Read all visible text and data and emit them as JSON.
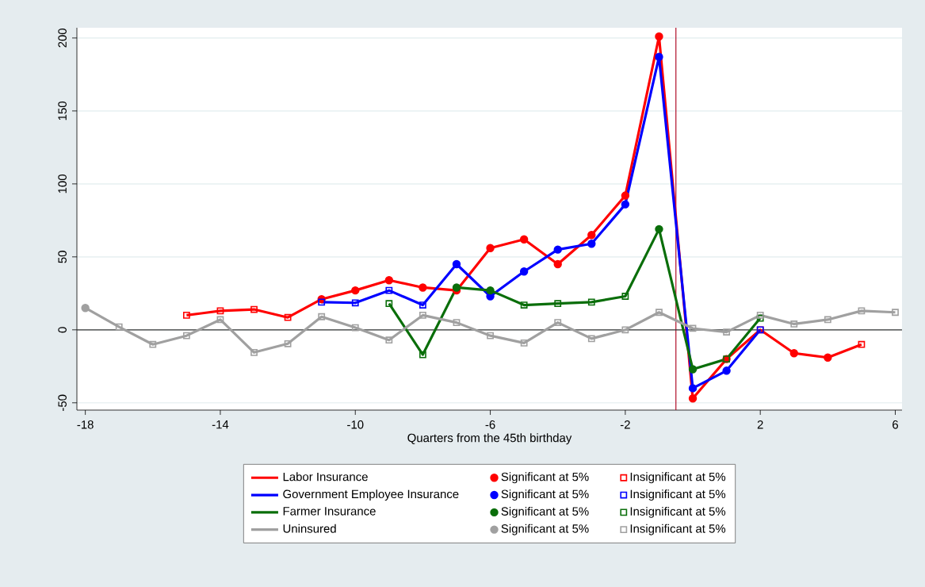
{
  "chart_data": {
    "type": "line",
    "xlabel": "Quarters from the 45th birthday",
    "x": [
      -18,
      -17,
      -16,
      -15,
      -14,
      -13,
      -12,
      -11,
      -10,
      -9,
      -8,
      -7,
      -6,
      -5,
      -4,
      -3,
      -2,
      -1,
      0,
      1,
      2,
      3,
      4,
      5,
      6
    ],
    "series": [
      {
        "name": "Labor Insurance",
        "color": "#ff0000",
        "values": [
          null,
          null,
          null,
          10,
          13,
          14,
          8.5,
          21,
          27,
          34,
          29,
          27,
          56,
          62,
          45,
          65,
          92,
          201,
          -47,
          -20,
          0,
          -16,
          -19,
          -10,
          null
        ]
      },
      {
        "name": "Significant at 5%",
        "type": "scatter",
        "marker": "circle",
        "color": "#ff0000",
        "values": [
          null,
          null,
          null,
          null,
          null,
          null,
          null,
          21,
          27,
          34,
          29,
          27,
          56,
          62,
          45,
          65,
          92,
          201,
          -47,
          -20,
          null,
          -16,
          -19,
          null,
          null
        ]
      },
      {
        "name": "Insignificant at 5%",
        "type": "scatter",
        "marker": "square",
        "color": "#ff0000",
        "values": [
          null,
          null,
          null,
          10,
          13,
          14,
          8.5,
          null,
          null,
          null,
          null,
          null,
          null,
          null,
          null,
          null,
          null,
          null,
          null,
          null,
          0,
          null,
          null,
          -10,
          null
        ]
      },
      {
        "name": "Government Employee Insurance",
        "color": "#0000ff",
        "values": [
          null,
          null,
          null,
          null,
          null,
          null,
          null,
          19,
          18.5,
          27,
          17,
          45,
          23,
          40,
          55,
          59,
          86,
          187,
          -40,
          -28,
          0,
          null,
          null,
          null,
          null
        ]
      },
      {
        "name": "Significant at 5%",
        "type": "scatter",
        "marker": "circle",
        "color": "#0000ff",
        "values": [
          null,
          null,
          null,
          null,
          null,
          null,
          null,
          null,
          null,
          null,
          null,
          45,
          23,
          40,
          55,
          59,
          86,
          187,
          -40,
          -28,
          null,
          null,
          null,
          null,
          null
        ]
      },
      {
        "name": "Insignificant at 5%",
        "type": "scatter",
        "marker": "square",
        "color": "#0000ff",
        "values": [
          null,
          null,
          null,
          null,
          null,
          null,
          null,
          19,
          18.5,
          27,
          17,
          null,
          null,
          null,
          null,
          null,
          null,
          null,
          null,
          null,
          0,
          null,
          null,
          null,
          null
        ]
      },
      {
        "name": "Farmer Insurance",
        "color": "#0a6e0a",
        "values": [
          null,
          null,
          null,
          null,
          null,
          null,
          null,
          null,
          null,
          18,
          -17,
          29,
          27,
          17,
          18,
          19,
          23,
          69,
          -27,
          -20,
          8,
          null,
          null,
          null,
          null
        ]
      },
      {
        "name": "Significant at 5%",
        "type": "scatter",
        "marker": "circle",
        "color": "#0a6e0a",
        "values": [
          null,
          null,
          null,
          null,
          null,
          null,
          null,
          null,
          null,
          null,
          null,
          29,
          27,
          null,
          null,
          null,
          null,
          69,
          -27,
          null,
          null,
          null,
          null,
          null,
          null
        ]
      },
      {
        "name": "Insignificant at 5%",
        "type": "scatter",
        "marker": "square",
        "color": "#0a6e0a",
        "values": [
          null,
          null,
          null,
          null,
          null,
          null,
          null,
          null,
          null,
          18,
          -17,
          null,
          null,
          17,
          18,
          19,
          23,
          null,
          null,
          -20,
          8,
          null,
          null,
          null,
          null
        ]
      },
      {
        "name": "Uninsured",
        "color": "#a0a0a0",
        "values": [
          15,
          2,
          -10,
          -4,
          7,
          -15.5,
          -9.5,
          9,
          1.5,
          -7,
          10,
          5,
          -4,
          -9,
          5,
          -6,
          0,
          12,
          1,
          -1.5,
          10,
          4,
          7,
          13,
          12
        ]
      },
      {
        "name": "Significant at 5%",
        "type": "scatter",
        "marker": "circle",
        "color": "#a0a0a0",
        "values": [
          15,
          null,
          null,
          null,
          null,
          null,
          null,
          null,
          null,
          null,
          null,
          null,
          null,
          null,
          null,
          null,
          null,
          null,
          null,
          null,
          null,
          null,
          null,
          null,
          null
        ]
      },
      {
        "name": "Insignificant at 5%",
        "type": "scatter",
        "marker": "square",
        "color": "#a0a0a0",
        "values": [
          null,
          2,
          -10,
          -4,
          7,
          -15.5,
          -9.5,
          9,
          1.5,
          -7,
          10,
          5,
          -4,
          -9,
          5,
          -6,
          0,
          12,
          1,
          -1.5,
          10,
          4,
          7,
          13,
          12
        ]
      }
    ],
    "xlim": [
      -18.25,
      6.2
    ],
    "ylim": [
      -55,
      207
    ],
    "xticks": [
      -18,
      -14,
      -10,
      -6,
      -2,
      2,
      6
    ],
    "yticks": [
      -50,
      0,
      50,
      100,
      150,
      200
    ],
    "ref_lines": [
      {
        "axis": "x",
        "value": -0.5,
        "color": "#b0102a"
      },
      {
        "axis": "y",
        "value": 0,
        "color": "#333333"
      }
    ],
    "grid": "y",
    "legend": "bottom",
    "line_style": "solid"
  }
}
